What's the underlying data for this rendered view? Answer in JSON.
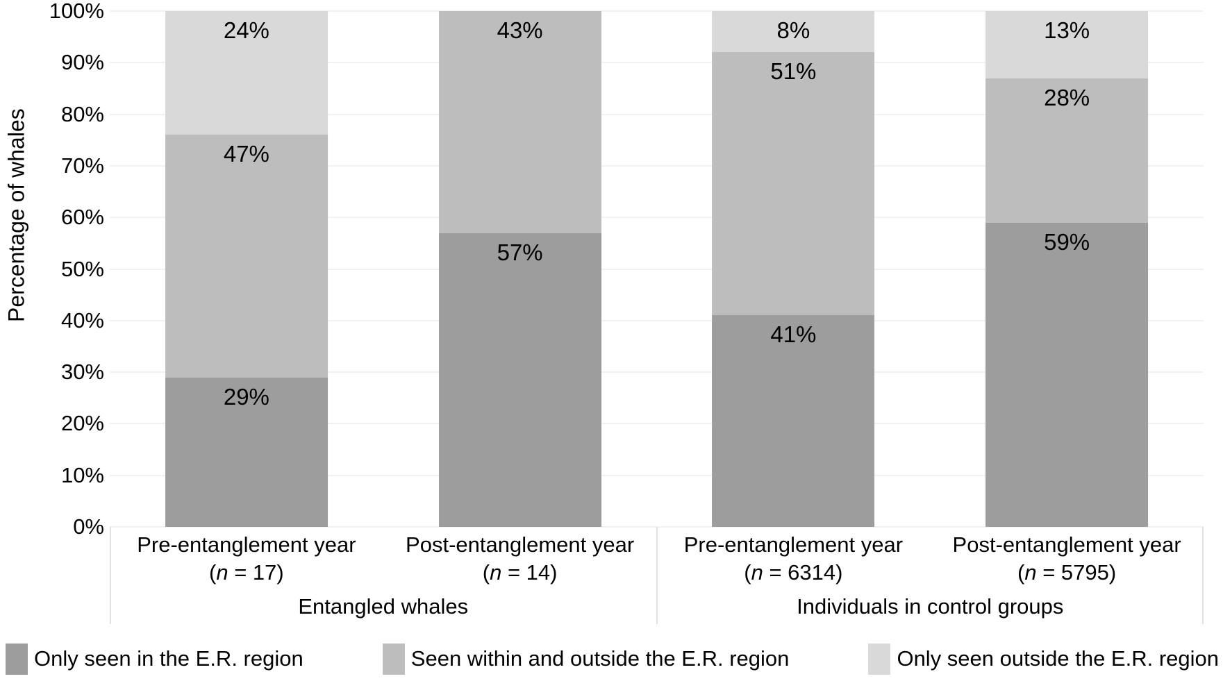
{
  "chart_data": {
    "type": "bar",
    "subtype": "stacked-100-percent",
    "title": "",
    "xlabel": "",
    "ylabel": "Percentage of whales",
    "ylim": [
      0,
      100
    ],
    "yticks": [
      "0%",
      "10%",
      "20%",
      "30%",
      "40%",
      "50%",
      "60%",
      "70%",
      "80%",
      "90%",
      "100%"
    ],
    "grid": "horizontal",
    "legend_position": "bottom",
    "categories": [
      {
        "line1": "Pre-entanglement year",
        "paren_open": "(",
        "n_italic": "n",
        "n_rest": " = 17)",
        "group": "Entangled whales"
      },
      {
        "line1": "Post-entanglement year",
        "paren_open": "(",
        "n_italic": "n",
        "n_rest": " = 14)",
        "group": "Entangled whales"
      },
      {
        "line1": "Pre-entanglement year",
        "paren_open": "(",
        "n_italic": "n",
        "n_rest": " = 6314)",
        "group": "Individuals in control groups"
      },
      {
        "line1": "Post-entanglement year",
        "paren_open": "(",
        "n_italic": "n",
        "n_rest": " = 5795)",
        "group": "Individuals in control groups"
      }
    ],
    "groups": [
      {
        "label": "Entangled whales",
        "span": [
          0,
          1
        ]
      },
      {
        "label": "Individuals in control groups",
        "span": [
          2,
          3
        ]
      }
    ],
    "series": [
      {
        "name": "Only seen in the E.R. region",
        "color": "#9d9d9d",
        "values": [
          29,
          57,
          41,
          59
        ],
        "labels": [
          "29%",
          "57%",
          "41%",
          "59%"
        ]
      },
      {
        "name": "Seen within and outside the E.R. region",
        "color": "#bdbdbd",
        "values": [
          47,
          43,
          51,
          28
        ],
        "labels": [
          "47%",
          "43%",
          "51%",
          "28%"
        ]
      },
      {
        "name": "Only seen outside the E.R. region",
        "color": "#d9d9d9",
        "values": [
          24,
          0,
          8,
          13
        ],
        "labels": [
          "24%",
          "",
          "8%",
          "13%"
        ]
      }
    ],
    "colors": {
      "background": "#ffffff",
      "gridline": "#f2f2f2",
      "axis_separator": "#e2e2e2",
      "text": "#000000"
    }
  }
}
